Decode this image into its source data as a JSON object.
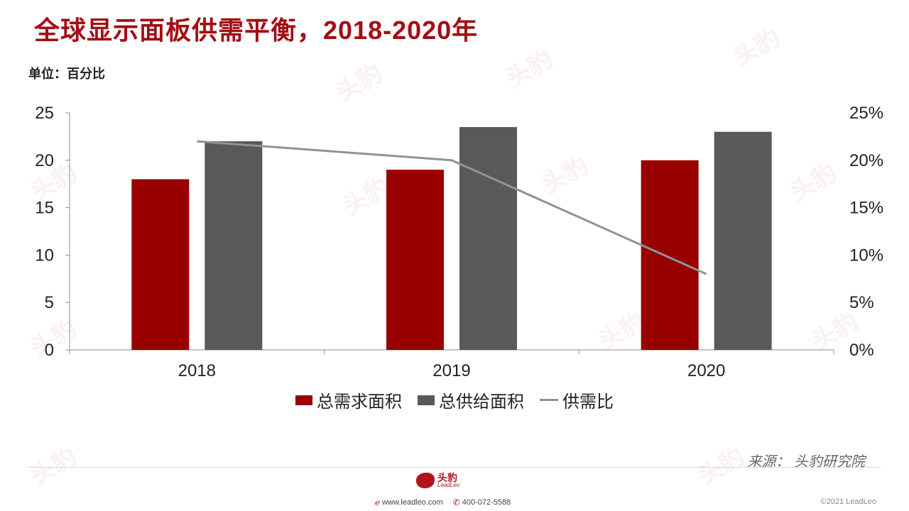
{
  "title": "全球显示面板供需平衡，2018-2020年",
  "unit_label": "单位：百分比",
  "source": "来源：  头豹研究院",
  "footer": {
    "logo_text": "头豹",
    "logo_sub": "LeadLeo",
    "website": "www.leadleo.com",
    "phone": "400-072-5588",
    "copyright": "©2021 LeadLeo"
  },
  "colors": {
    "title": "#a30d14",
    "demand": "#990000",
    "supply": "#595959",
    "ratio": "#8c9399"
  },
  "chart_data": {
    "type": "bar",
    "categories": [
      "2018",
      "2019",
      "2020"
    ],
    "series": [
      {
        "name": "总需求面积",
        "type": "bar",
        "axis": "left",
        "values": [
          18,
          19,
          20
        ]
      },
      {
        "name": "总供给面积",
        "type": "bar",
        "axis": "left",
        "values": [
          22,
          23.5,
          23
        ]
      },
      {
        "name": "供需比",
        "type": "line",
        "axis": "right",
        "values": [
          22,
          20,
          8
        ]
      }
    ],
    "y_left": {
      "ylim": [
        0,
        25
      ],
      "ticks": [
        "0",
        "5",
        "10",
        "15",
        "20",
        "25"
      ]
    },
    "y_right": {
      "ylim": [
        0,
        25
      ],
      "ticks": [
        "0%",
        "5%",
        "10%",
        "15%",
        "20%",
        "25%"
      ]
    },
    "legend_position": "bottom"
  }
}
